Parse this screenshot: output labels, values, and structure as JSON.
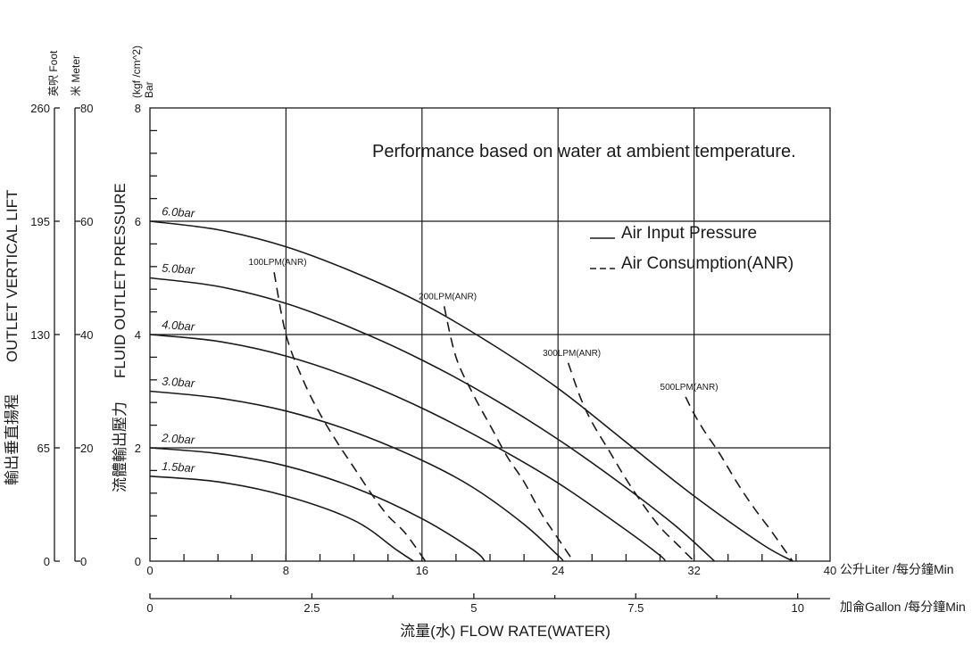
{
  "chart_data": {
    "type": "line",
    "annotation": "Performance based on water at ambient temperature.",
    "x_primary": {
      "label": "流量(水) FLOW RATE(WATER)",
      "unit": "公升Liter /每分鐘Min",
      "range": [
        0,
        40
      ],
      "ticks": [
        "0",
        "8",
        "16",
        "24",
        "32",
        "40"
      ],
      "tick_values": [
        0,
        8,
        16,
        24,
        32,
        40
      ],
      "minor_step": 2
    },
    "x_secondary": {
      "unit": "加侖Gallon /每分鐘Min",
      "range": [
        0,
        10.5
      ],
      "ticks": [
        "0",
        "2.5",
        "5",
        "7.5",
        "10"
      ],
      "tick_values": [
        0,
        2.5,
        5,
        7.5,
        10
      ]
    },
    "y_primary": {
      "label": "FLUID OUTLET PRESSURE",
      "label_cn": "流體輸出壓力",
      "unit_head": "(kgf /cm^2)",
      "unit_head_2": "Bar",
      "range": [
        0,
        8
      ],
      "ticks": [
        "0",
        "2",
        "4",
        "6",
        "8"
      ],
      "tick_values": [
        0,
        2,
        4,
        6,
        8
      ],
      "minor_step": 0.4
    },
    "y_meter": {
      "head": "米 Meter",
      "ticks": [
        "0",
        "20",
        "40",
        "60",
        "80"
      ],
      "tick_values": [
        0,
        20,
        40,
        60,
        80
      ]
    },
    "y_foot": {
      "head": "英呎 Foot",
      "ticks": [
        "0",
        "65",
        "130",
        "195",
        "260"
      ],
      "tick_values": [
        0,
        65,
        130,
        195,
        260
      ],
      "label": "OUTLET VERTICAL LIFT",
      "label_cn": "輸出垂直揚程"
    },
    "legend": [
      {
        "name": "Air Input Pressure",
        "style": "solid"
      },
      {
        "name": "Air Consumption(ANR)",
        "style": "dashed"
      }
    ],
    "series": [
      {
        "name": "6.0bar",
        "style": "solid",
        "points": [
          [
            0,
            6.0
          ],
          [
            4,
            5.85
          ],
          [
            8,
            5.55
          ],
          [
            12,
            5.1
          ],
          [
            16,
            4.55
          ],
          [
            20,
            3.85
          ],
          [
            24,
            3.05
          ],
          [
            28,
            2.1
          ],
          [
            32,
            1.15
          ],
          [
            36,
            0.3
          ],
          [
            37.8,
            0
          ]
        ]
      },
      {
        "name": "5.0bar",
        "style": "solid",
        "points": [
          [
            0,
            5.0
          ],
          [
            4,
            4.85
          ],
          [
            8,
            4.55
          ],
          [
            12,
            4.1
          ],
          [
            16,
            3.55
          ],
          [
            20,
            2.9
          ],
          [
            24,
            2.15
          ],
          [
            28,
            1.3
          ],
          [
            31,
            0.6
          ],
          [
            33.2,
            0
          ]
        ]
      },
      {
        "name": "4.0bar",
        "style": "solid",
        "points": [
          [
            0,
            4.0
          ],
          [
            4,
            3.88
          ],
          [
            8,
            3.62
          ],
          [
            12,
            3.22
          ],
          [
            16,
            2.7
          ],
          [
            20,
            2.08
          ],
          [
            24,
            1.38
          ],
          [
            28,
            0.55
          ],
          [
            30,
            0.1
          ],
          [
            30.3,
            0
          ]
        ]
      },
      {
        "name": "3.0bar",
        "style": "solid",
        "points": [
          [
            0,
            3.0
          ],
          [
            4,
            2.88
          ],
          [
            8,
            2.65
          ],
          [
            12,
            2.28
          ],
          [
            16,
            1.78
          ],
          [
            19,
            1.3
          ],
          [
            22,
            0.65
          ],
          [
            24,
            0.1
          ],
          [
            24.3,
            0
          ]
        ]
      },
      {
        "name": "2.0bar",
        "style": "solid",
        "points": [
          [
            0,
            2.0
          ],
          [
            4,
            1.9
          ],
          [
            8,
            1.68
          ],
          [
            12,
            1.3
          ],
          [
            16,
            0.75
          ],
          [
            19,
            0.2
          ],
          [
            19.7,
            0
          ]
        ]
      },
      {
        "name": "1.5bar",
        "style": "solid",
        "points": [
          [
            0,
            1.5
          ],
          [
            4,
            1.4
          ],
          [
            8,
            1.15
          ],
          [
            12,
            0.72
          ],
          [
            14.5,
            0.2
          ],
          [
            15.5,
            0
          ]
        ]
      },
      {
        "name": "100LPM(ANR)",
        "style": "dashed",
        "points": [
          [
            7.3,
            5.1
          ],
          [
            8,
            4.0
          ],
          [
            9,
            3.2
          ],
          [
            10,
            2.6
          ],
          [
            11,
            2.1
          ],
          [
            12,
            1.65
          ],
          [
            13,
            1.2
          ],
          [
            14,
            0.8
          ],
          [
            15,
            0.5
          ],
          [
            16.2,
            0
          ]
        ]
      },
      {
        "name": "200LPM(ANR)",
        "style": "dashed",
        "points": [
          [
            17.3,
            4.5
          ],
          [
            18,
            3.6
          ],
          [
            19,
            2.95
          ],
          [
            20,
            2.4
          ],
          [
            21,
            1.85
          ],
          [
            22,
            1.4
          ],
          [
            23,
            0.85
          ],
          [
            24,
            0.4
          ],
          [
            24.9,
            0
          ]
        ]
      },
      {
        "name": "300LPM(ANR)",
        "style": "dashed",
        "points": [
          [
            24.6,
            3.5
          ],
          [
            25.3,
            2.9
          ],
          [
            26,
            2.45
          ],
          [
            27,
            1.95
          ],
          [
            28,
            1.45
          ],
          [
            29,
            1.0
          ],
          [
            30,
            0.6
          ],
          [
            31,
            0.3
          ],
          [
            32,
            0
          ]
        ]
      },
      {
        "name": "500LPM(ANR)",
        "style": "dashed",
        "points": [
          [
            31.5,
            2.9
          ],
          [
            32,
            2.6
          ],
          [
            32.6,
            2.3
          ],
          [
            33.5,
            1.9
          ],
          [
            34.5,
            1.4
          ],
          [
            35.5,
            0.95
          ],
          [
            36.5,
            0.55
          ],
          [
            37.2,
            0.25
          ],
          [
            37.8,
            0
          ]
        ]
      }
    ]
  }
}
